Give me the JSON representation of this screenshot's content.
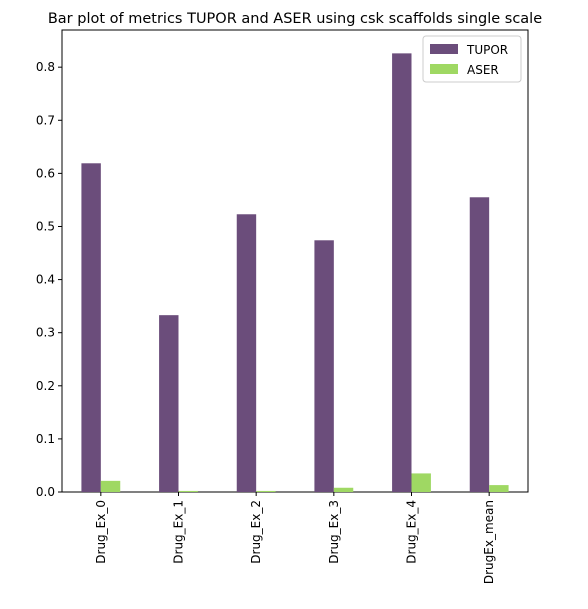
{
  "chart_data": {
    "type": "bar",
    "title": "Bar plot of metrics TUPOR and ASER using csk scaffolds single scale",
    "xlabel": "",
    "ylabel": "",
    "categories": [
      "Drug_Ex_0",
      "Drug_Ex_1",
      "Drug_Ex_2",
      "Drug_Ex_3",
      "Drug_Ex_4",
      "DrugEx_mean"
    ],
    "series": [
      {
        "name": "TUPOR",
        "color": "#6b4d7b",
        "values": [
          0.619,
          0.333,
          0.523,
          0.474,
          0.826,
          0.555
        ]
      },
      {
        "name": "ASER",
        "color": "#9fd863",
        "values": [
          0.021,
          0.002,
          0.002,
          0.008,
          0.035,
          0.013
        ]
      }
    ],
    "ylim": [
      0,
      0.87
    ],
    "yticks": [
      0.0,
      0.1,
      0.2,
      0.3,
      0.4,
      0.5,
      0.6,
      0.7,
      0.8
    ],
    "ytick_labels": [
      "0.0",
      "0.1",
      "0.2",
      "0.3",
      "0.4",
      "0.5",
      "0.6",
      "0.7",
      "0.8"
    ],
    "grid": false,
    "legend_position": "top-right"
  }
}
